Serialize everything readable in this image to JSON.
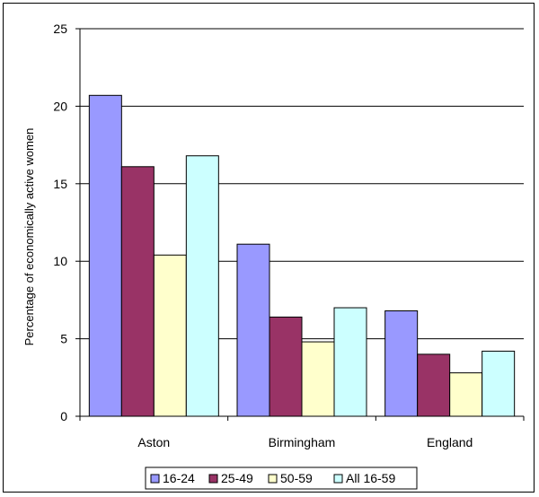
{
  "chart_data": {
    "type": "bar",
    "categories": [
      "Aston",
      "Birmingham",
      "England"
    ],
    "series": [
      {
        "name": "16-24",
        "color": "#9999ff",
        "values": [
          20.7,
          11.1,
          6.8
        ]
      },
      {
        "name": "25-49",
        "color": "#993366",
        "values": [
          16.1,
          6.4,
          4.0
        ]
      },
      {
        "name": "50-59",
        "color": "#ffffcc",
        "values": [
          10.4,
          4.8,
          2.8
        ]
      },
      {
        "name": "All 16-59",
        "color": "#ccffff",
        "values": [
          16.8,
          7.0,
          4.2
        ]
      }
    ],
    "title": "",
    "xlabel": "",
    "ylabel": "Percentage of economically active women",
    "ylim": [
      0,
      25
    ],
    "yticks": [
      0,
      5,
      10,
      15,
      20,
      25
    ],
    "grid": true,
    "legend_position": "bottom"
  }
}
